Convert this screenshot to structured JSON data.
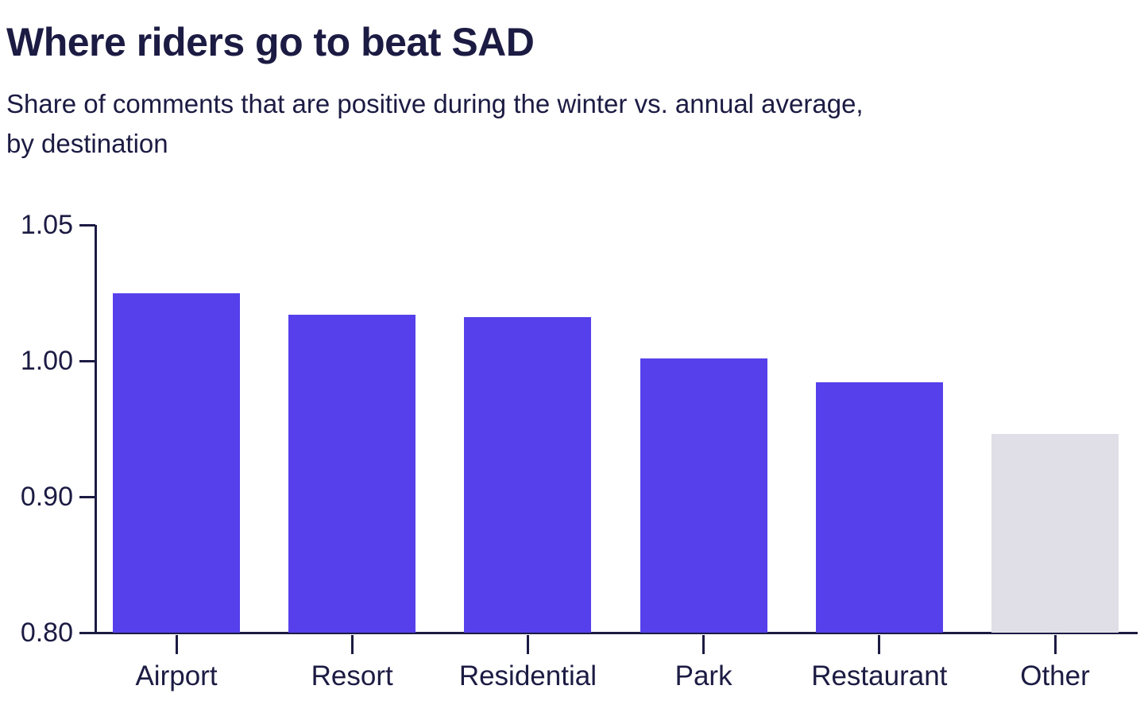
{
  "chart_data": {
    "type": "bar",
    "title": "Where riders go to beat SAD",
    "subtitle_lines": [
      "Share of comments that are positive during the winter vs. annual average,",
      "by destination"
    ],
    "categories": [
      "Airport",
      "Resort",
      "Residential",
      "Park",
      "Restaurant",
      "Other"
    ],
    "values": [
      1.025,
      1.017,
      1.016,
      1.001,
      0.984,
      0.946
    ],
    "bar_color_roles": [
      "primary",
      "primary",
      "primary",
      "primary",
      "primary",
      "muted"
    ],
    "palette": {
      "primary": "#5640EB",
      "muted": "#E0DFE7",
      "axis": "#1B1B43",
      "text": "#1B1B43"
    },
    "y_axis": {
      "tick_labels": [
        "1.05",
        "1.00",
        "0.90",
        "0.80"
      ],
      "tick_values": [
        1.05,
        1.0,
        0.9,
        0.8
      ],
      "equal_tick_spacing": true,
      "range_shown": [
        0.8,
        1.05
      ]
    },
    "xlabel": "",
    "ylabel": "",
    "grid": false,
    "legend": false
  }
}
